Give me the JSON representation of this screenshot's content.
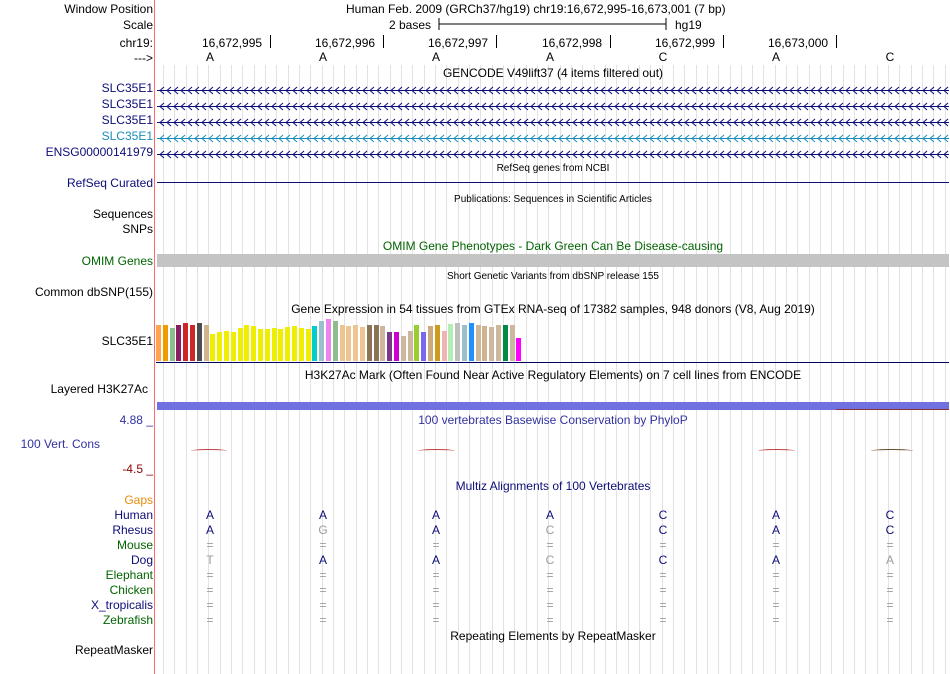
{
  "header": {
    "window_label": "Window Position",
    "window_value": "Human Feb. 2009 (GRCh37/hg19)   chr19:16,672,995-16,673,001 (7 bp)",
    "scale_label": "Scale",
    "scale_value": "2 bases",
    "scale_assembly": "hg19",
    "chrom_label": "chr19:",
    "arrow_label": "--->"
  },
  "ruler_positions": [
    "16,672,995",
    "16,672,996",
    "16,672,997",
    "16,672,998",
    "16,672,999",
    "16,673,000"
  ],
  "sequence": [
    "A",
    "A",
    "A",
    "A",
    "C",
    "A",
    "C"
  ],
  "gencode": {
    "title": "GENCODE V49lift37 (4 items filtered out)",
    "genes": [
      {
        "name": "SLC35E1",
        "color": "#0c0c78"
      },
      {
        "name": "SLC35E1",
        "color": "#0c0c78"
      },
      {
        "name": "SLC35E1",
        "color": "#0c0c78"
      },
      {
        "name": "SLC35E1",
        "color": "#1a8cb8"
      },
      {
        "name": "ENSG00000141979",
        "color": "#0c0c78"
      }
    ]
  },
  "refseq": {
    "title": "RefSeq genes from NCBI",
    "label": "RefSeq Curated"
  },
  "publications": {
    "title": "Publications: Sequences in Scientific Articles",
    "label1": "Sequences",
    "label2": "SNPs"
  },
  "omim": {
    "title": "OMIM Gene Phenotypes - Dark Green Can Be Disease-causing",
    "label": "OMIM Genes"
  },
  "dbsnp": {
    "title": "Short Genetic Variants from dbSNP release 155",
    "label": "Common dbSNP(155)"
  },
  "gtex": {
    "title": "Gene Expression in 54 tissues from GTEx RNA-seq of 17382 samples, 948 donors (V8, Aug 2019)",
    "label": "SLC35E1",
    "tissues": [
      {
        "v": 0.95,
        "c": "#ffa54f"
      },
      {
        "v": 0.95,
        "c": "#ee9a00"
      },
      {
        "v": 0.88,
        "c": "#8fbc8f"
      },
      {
        "v": 0.95,
        "c": "#8b1c62"
      },
      {
        "v": 1.0,
        "c": "#cd2626"
      },
      {
        "v": 0.95,
        "c": "#cd2626"
      },
      {
        "v": 1.0,
        "c": "#4d4d4d"
      },
      {
        "v": 0.95,
        "c": "#d2b48c"
      },
      {
        "v": 0.7,
        "c": "#eeee00"
      },
      {
        "v": 0.75,
        "c": "#eeee00"
      },
      {
        "v": 0.8,
        "c": "#eeee00"
      },
      {
        "v": 0.75,
        "c": "#eeee00"
      },
      {
        "v": 0.88,
        "c": "#eeee00"
      },
      {
        "v": 0.95,
        "c": "#eeee00"
      },
      {
        "v": 0.92,
        "c": "#eeee00"
      },
      {
        "v": 0.85,
        "c": "#eeee00"
      },
      {
        "v": 0.85,
        "c": "#eeee00"
      },
      {
        "v": 0.88,
        "c": "#eeee00"
      },
      {
        "v": 0.85,
        "c": "#eeee00"
      },
      {
        "v": 0.9,
        "c": "#eeee00"
      },
      {
        "v": 0.92,
        "c": "#eeee00"
      },
      {
        "v": 0.88,
        "c": "#eeee00"
      },
      {
        "v": 0.85,
        "c": "#eeee00"
      },
      {
        "v": 0.92,
        "c": "#00cdcd"
      },
      {
        "v": 1.05,
        "c": "#9ac0cd"
      },
      {
        "v": 1.1,
        "c": "#ee82ee"
      },
      {
        "v": 1.05,
        "c": "#8fbc8f"
      },
      {
        "v": 0.95,
        "c": "#eec591"
      },
      {
        "v": 0.92,
        "c": "#eec591"
      },
      {
        "v": 0.95,
        "c": "#eec591"
      },
      {
        "v": 0.9,
        "c": "#eec591"
      },
      {
        "v": 0.95,
        "c": "#8b7355"
      },
      {
        "v": 0.95,
        "c": "#8b7355"
      },
      {
        "v": 0.92,
        "c": "#cdb79e"
      },
      {
        "v": 0.75,
        "c": "#7a378b"
      },
      {
        "v": 0.75,
        "c": "#cd00cd"
      },
      {
        "v": 0.65,
        "c": "#cdb79e"
      },
      {
        "v": 0.8,
        "c": "#cdb79e"
      },
      {
        "v": 0.95,
        "c": "#9acd32"
      },
      {
        "v": 0.75,
        "c": "#7a67ee"
      },
      {
        "v": 0.92,
        "c": "#cdaa7d"
      },
      {
        "v": 0.95,
        "c": "#cd9b1d"
      },
      {
        "v": 0.8,
        "c": "#eeb4b4"
      },
      {
        "v": 0.98,
        "c": "#b4eeb4"
      },
      {
        "v": 1.0,
        "c": "#bfbfbf"
      },
      {
        "v": 0.95,
        "c": "#9ac0cd"
      },
      {
        "v": 1.0,
        "c": "#1e90ff"
      },
      {
        "v": 0.95,
        "c": "#cdb79e"
      },
      {
        "v": 0.92,
        "c": "#d2b48c"
      },
      {
        "v": 0.9,
        "c": "#cdb79e"
      },
      {
        "v": 0.95,
        "c": "#cdb79e"
      },
      {
        "v": 0.95,
        "c": "#008b45"
      },
      {
        "v": 0.95,
        "c": "#cdb79e"
      },
      {
        "v": 0.6,
        "c": "#ff00ff"
      }
    ]
  },
  "h3k27ac": {
    "title": "H3K27Ac Mark (Often Found Near Active Regulatory Elements) on 7 cell lines from ENCODE",
    "label": "Layered H3K27Ac"
  },
  "phylop": {
    "title": "100 vertebrates Basewise Conservation by PhyloP",
    "max": "4.88 _",
    "label": "100 Vert. Cons",
    "min": "-4.5 _"
  },
  "multiz": {
    "title": "Multiz Alignments of 100 Vertebrates",
    "gaps_label": "Gaps",
    "species": [
      {
        "name": "Human",
        "color": "#0c0c78",
        "bases": [
          "A",
          "A",
          "A",
          "A",
          "C",
          "A",
          "C"
        ]
      },
      {
        "name": "Rhesus",
        "color": "#0c0c78",
        "bases": [
          "A",
          "G",
          "A",
          "C",
          "C",
          "A",
          "C"
        ]
      },
      {
        "name": "Mouse",
        "color": "#006400",
        "bases": [
          "=",
          "=",
          "=",
          "=",
          "=",
          "=",
          "="
        ]
      },
      {
        "name": "Dog",
        "color": "#0c0c78",
        "bases": [
          "T",
          "A",
          "A",
          "C",
          "C",
          "A",
          "A"
        ]
      },
      {
        "name": "Elephant",
        "color": "#006400",
        "bases": [
          "=",
          "=",
          "=",
          "=",
          "=",
          "=",
          "="
        ]
      },
      {
        "name": "Chicken",
        "color": "#006400",
        "bases": [
          "=",
          "=",
          "=",
          "=",
          "=",
          "=",
          "="
        ]
      },
      {
        "name": "X_tropicalis",
        "color": "#0c0c78",
        "bases": [
          "=",
          "=",
          "=",
          "=",
          "=",
          "=",
          "="
        ]
      },
      {
        "name": "Zebrafish",
        "color": "#006400",
        "bases": [
          "=",
          "=",
          "=",
          "=",
          "=",
          "=",
          "="
        ]
      }
    ]
  },
  "repeatmasker": {
    "title": "Repeating Elements by RepeatMasker",
    "label": "RepeatMasker"
  },
  "colors": {
    "navy": "#0c0c78",
    "green": "#006400",
    "orange": "#e98d0a",
    "maroon": "#8b0000",
    "phylop_blue": "#3232a0",
    "h3k27ac_bar": "#7070e0"
  }
}
